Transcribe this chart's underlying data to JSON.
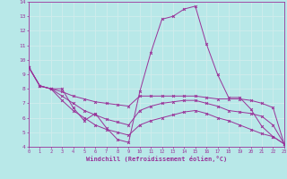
{
  "xlabel": "Windchill (Refroidissement éolien,°C)",
  "xlim": [
    0,
    23
  ],
  "ylim": [
    4,
    14
  ],
  "xticks": [
    0,
    1,
    2,
    3,
    4,
    5,
    6,
    7,
    8,
    9,
    10,
    11,
    12,
    13,
    14,
    15,
    16,
    17,
    18,
    19,
    20,
    21,
    22,
    23
  ],
  "yticks": [
    4,
    5,
    6,
    7,
    8,
    9,
    10,
    11,
    12,
    13,
    14
  ],
  "bg_color": "#b8e8e8",
  "line_color": "#993399",
  "grid_color": "#d0ecec",
  "lines": [
    [
      9.5,
      8.2,
      8.0,
      8.0,
      6.7,
      5.8,
      6.3,
      5.3,
      4.5,
      4.3,
      7.8,
      10.5,
      12.8,
      13.0,
      13.5,
      13.7,
      11.1,
      9.0,
      7.4,
      7.4,
      6.6,
      5.4,
      4.7,
      4.2
    ],
    [
      9.5,
      8.2,
      8.0,
      7.8,
      7.5,
      7.3,
      7.1,
      7.0,
      6.9,
      6.8,
      7.5,
      7.5,
      7.5,
      7.5,
      7.5,
      7.5,
      7.4,
      7.3,
      7.3,
      7.3,
      7.2,
      7.0,
      6.7,
      4.2
    ],
    [
      9.5,
      8.2,
      8.0,
      7.5,
      7.0,
      6.5,
      6.2,
      5.9,
      5.7,
      5.5,
      6.5,
      6.8,
      7.0,
      7.1,
      7.2,
      7.2,
      7.0,
      6.8,
      6.5,
      6.4,
      6.3,
      6.1,
      5.5,
      4.2
    ],
    [
      9.5,
      8.2,
      8.0,
      7.2,
      6.5,
      6.0,
      5.5,
      5.2,
      5.0,
      4.8,
      5.5,
      5.8,
      6.0,
      6.2,
      6.4,
      6.5,
      6.3,
      6.0,
      5.8,
      5.5,
      5.2,
      4.9,
      4.7,
      4.2
    ]
  ]
}
